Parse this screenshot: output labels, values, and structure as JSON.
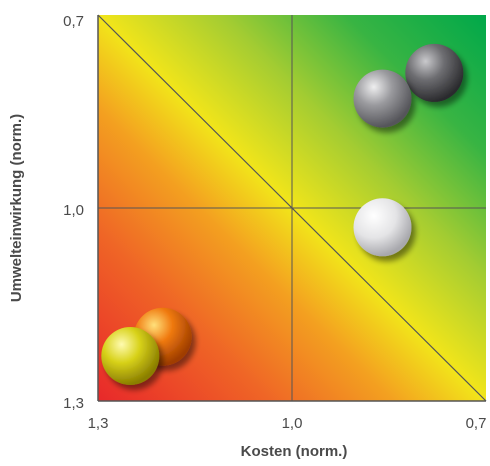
{
  "chart_data": {
    "type": "scatter",
    "title": "",
    "xlabel": "Kosten (norm.)",
    "ylabel": "Umwelteinwirkung (norm.)",
    "xlim": [
      1.3,
      0.7
    ],
    "ylim": [
      1.3,
      0.7
    ],
    "x_ticks": [
      "1,3",
      "1,0",
      "0,7"
    ],
    "y_ticks": [
      "0,7",
      "1,0",
      "1,3"
    ],
    "grid": true,
    "reference_lines": [
      "x = 1,0",
      "y = 1,0",
      "diagonal from (1,3 ; 0,7) to (0,7 ; 1,3)"
    ],
    "background": "gradient from red (bottom-left) through yellow to green (top-right)",
    "points": [
      {
        "x": 0.78,
        "y": 0.79,
        "color": "#6e6e72",
        "name": "dark-gray-sphere"
      },
      {
        "x": 0.86,
        "y": 0.83,
        "color": "#9a9a9e",
        "name": "gray-sphere"
      },
      {
        "x": 0.86,
        "y": 1.03,
        "color": "#e4e4e6",
        "name": "white-sphere"
      },
      {
        "x": 1.2,
        "y": 1.2,
        "color": "#f07a10",
        "name": "orange-sphere"
      },
      {
        "x": 1.25,
        "y": 1.23,
        "color": "#d8d21a",
        "name": "yellow-sphere"
      }
    ]
  },
  "colors": {
    "red": "#e8282a",
    "orange": "#f08a24",
    "yellow": "#f2e51a",
    "green": "#00a84a",
    "axis": "#555555",
    "text": "#4a4a4a"
  }
}
